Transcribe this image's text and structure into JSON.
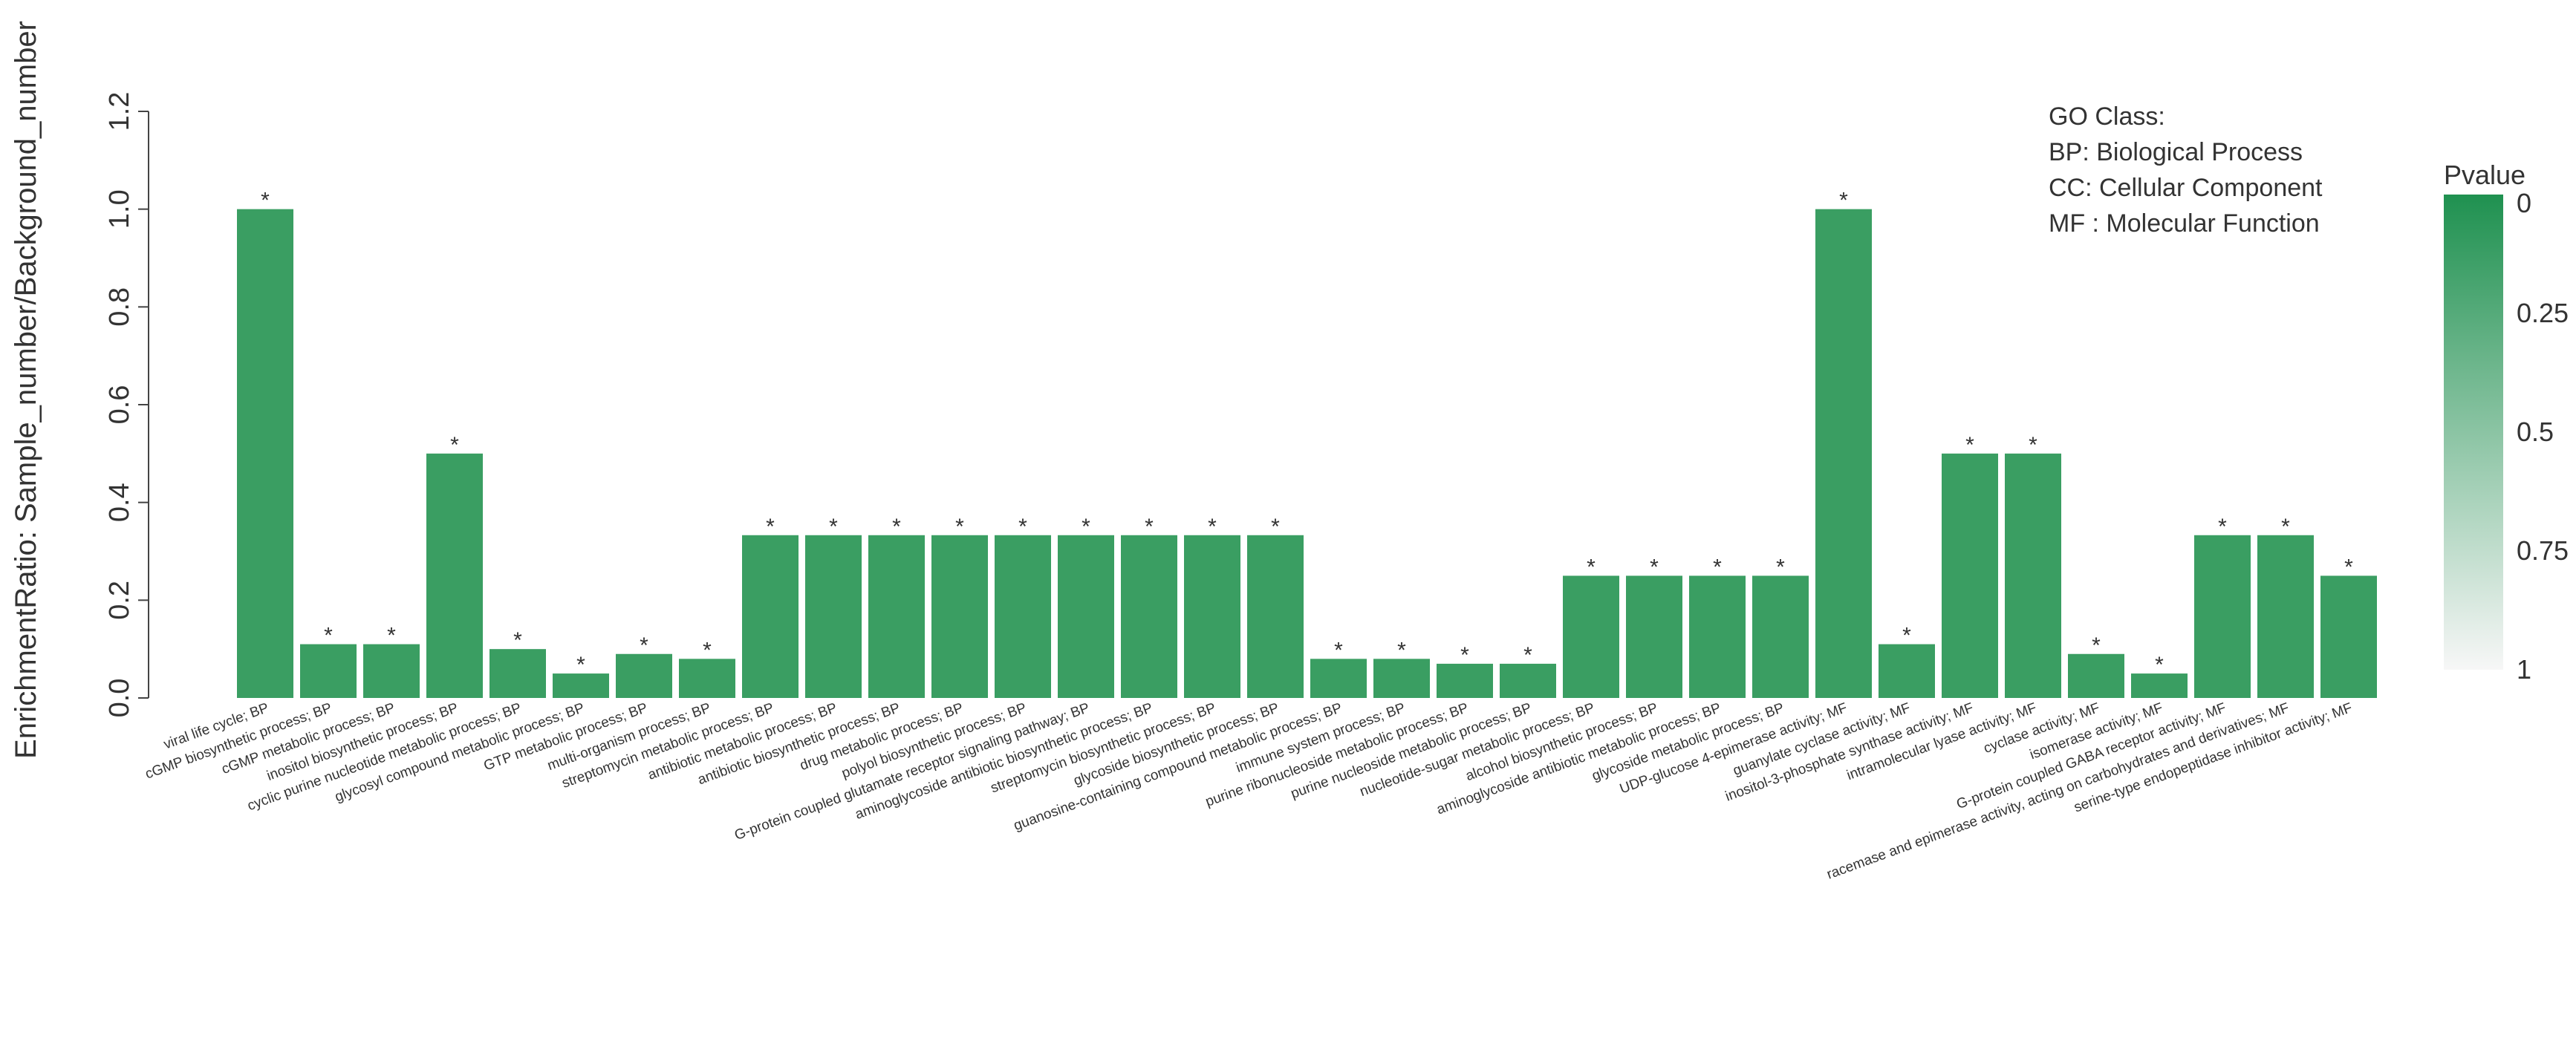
{
  "chart_data": {
    "type": "bar",
    "ylabel": "EnrichmentRatio: Sample_number/Background_number",
    "ylim": [
      0,
      1.2
    ],
    "yticks": [
      "0.0",
      "0.2",
      "0.4",
      "0.6",
      "0.8",
      "1.0",
      "1.2"
    ],
    "ytick_values": [
      0,
      0.2,
      0.4,
      0.6,
      0.8,
      1.0,
      1.2
    ],
    "bar_color": "#3a9e62",
    "categories": [
      "viral life cycle;  BP",
      "cGMP biosynthetic process;  BP",
      "cGMP metabolic process;  BP",
      "inositol biosynthetic process;  BP",
      "cyclic purine nucleotide metabolic process;  BP",
      "glycosyl compound metabolic process;  BP",
      "GTP metabolic process;  BP",
      "multi-organism process;  BP",
      "streptomycin metabolic process;  BP",
      "antibiotic metabolic process;  BP",
      "antibiotic biosynthetic process;  BP",
      "drug metabolic process;  BP",
      "polyol biosynthetic process;  BP",
      "G-protein coupled glutamate receptor signaling pathway;  BP",
      "aminoglycoside antibiotic biosynthetic process;  BP",
      "streptomycin biosynthetic process;  BP",
      "glycoside biosynthetic process;  BP",
      "guanosine-containing compound metabolic process;  BP",
      "immune system process;  BP",
      "purine ribonucleoside metabolic process;  BP",
      "purine nucleoside metabolic process;  BP",
      "nucleotide-sugar metabolic process;  BP",
      "alcohol biosynthetic process;  BP",
      "aminoglycoside antibiotic metabolic process;  BP",
      "glycoside metabolic process;  BP",
      "UDP-glucose 4-epimerase activity;  MF",
      "guanylate cyclase activity;  MF",
      "inositol-3-phosphate synthase activity;  MF",
      "intramolecular lyase activity;  MF",
      "cyclase activity;  MF",
      "isomerase activity;  MF",
      "G-protein coupled GABA receptor activity;  MF",
      "racemase and epimerase activity, acting on carbohydrates and derivatives;  MF",
      "serine-type endopeptidase inhibitor activity;  MF"
    ],
    "values": [
      1.0,
      0.11,
      0.11,
      0.5,
      0.1,
      0.05,
      0.09,
      0.08,
      0.333,
      0.333,
      0.333,
      0.333,
      0.333,
      0.333,
      0.333,
      0.333,
      0.333,
      0.08,
      0.08,
      0.07,
      0.07,
      0.25,
      0.25,
      0.25,
      0.25,
      1.0,
      0.11,
      0.5,
      0.5,
      0.09,
      0.05,
      0.333,
      0.333,
      0.25
    ],
    "significance_marker": "*",
    "legend": {
      "title": "GO Class:",
      "entries": [
        "BP: Biological Process",
        "CC: Cellular Component",
        "MF : Molecular Function"
      ],
      "placement": "top-right"
    },
    "colorbar": {
      "title": "Pvalue",
      "ticks": [
        "0",
        "0.25",
        "0.5",
        "0.75",
        "1"
      ],
      "tick_values": [
        0,
        0.25,
        0.5,
        0.75,
        1
      ],
      "color_high": "#1f9150",
      "color_low": "#f7f7f7"
    }
  }
}
